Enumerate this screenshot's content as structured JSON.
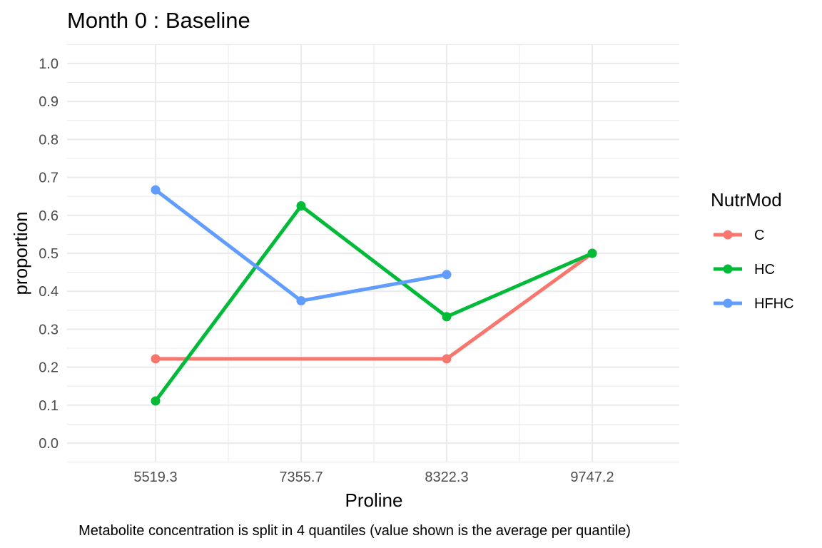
{
  "chart_data": {
    "type": "line",
    "title": "Month 0 : Baseline",
    "xlabel": "Proline",
    "ylabel": "proportion",
    "caption": "Metabolite concentration is split in 4 quantiles (value shown is the average per quantile)",
    "categories": [
      "5519.3",
      "7355.7",
      "8322.3",
      "9747.2"
    ],
    "ylim": [
      0,
      1
    ],
    "yticks": [
      "0.0",
      "0.1",
      "0.2",
      "0.3",
      "0.4",
      "0.5",
      "0.6",
      "0.7",
      "0.8",
      "0.9",
      "1.0"
    ],
    "grid": true,
    "legend": {
      "title": "NutrMod",
      "position": "right"
    },
    "series": [
      {
        "name": "C",
        "color": "#F8766D",
        "values": [
          0.222,
          null,
          0.222,
          0.5
        ]
      },
      {
        "name": "HC",
        "color": "#00BA38",
        "values": [
          0.111,
          0.625,
          0.333,
          0.5
        ]
      },
      {
        "name": "HFHC",
        "color": "#619CFF",
        "values": [
          0.667,
          0.375,
          0.444,
          null
        ]
      }
    ]
  }
}
